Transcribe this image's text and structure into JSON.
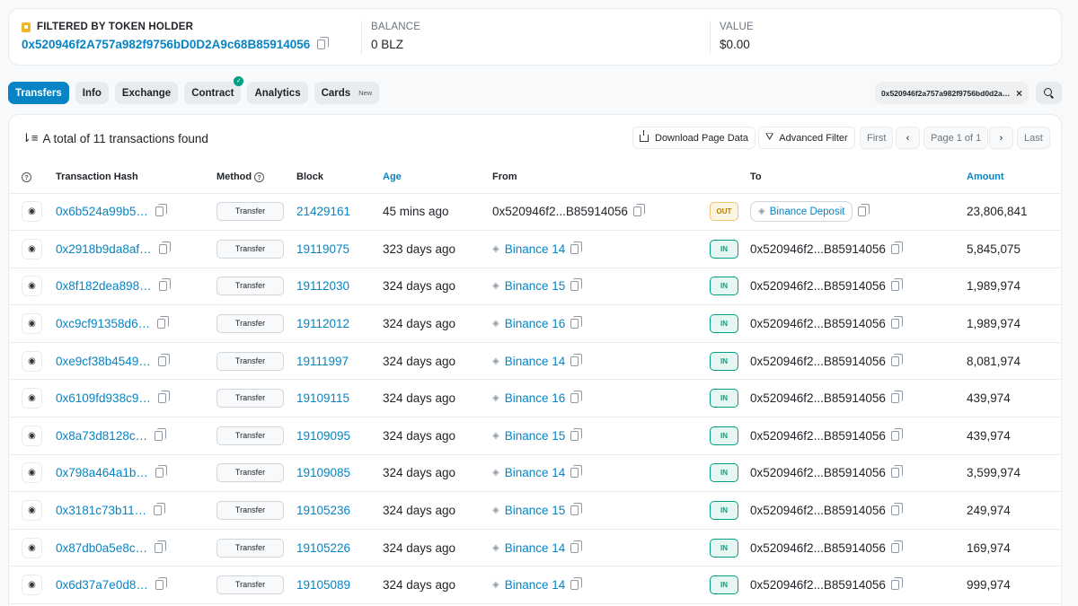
{
  "summary": {
    "filter_label": "FILTERED BY TOKEN HOLDER",
    "holder_address": "0x520946f2A757a982f9756bD0D2A9c68B85914056",
    "balance_label": "BALANCE",
    "balance_value": "0 BLZ",
    "value_label": "VALUE",
    "value_value": "$0.00"
  },
  "tabs": [
    {
      "label": "Transfers",
      "active": true
    },
    {
      "label": "Info"
    },
    {
      "label": "Exchange"
    },
    {
      "label": "Contract",
      "verified": "✓"
    },
    {
      "label": "Analytics"
    },
    {
      "label": "Cards",
      "badge": "New"
    }
  ],
  "filter_chip": {
    "address": "0x520946f2a757a982f9756bd0d2a9c68b85914056",
    "clear": "×"
  },
  "list": {
    "total_text": "A total of 11 transactions found",
    "download_label": "Download Page Data",
    "advanced_filter_label": "Advanced Filter",
    "pagination": {
      "first": "First",
      "prev": "‹",
      "page_text": "Page 1 of 1",
      "next": "›",
      "last": "Last"
    }
  },
  "table": {
    "headers": {
      "hash": "Transaction Hash",
      "method": "Method",
      "block": "Block",
      "age": "Age",
      "from": "From",
      "to": "To",
      "amount": "Amount"
    },
    "rows": [
      {
        "hash": "0x6b524a99b5…",
        "method": "Transfer",
        "block": "21429161",
        "age": "45 mins ago",
        "from": "0x520946f2...B85914056",
        "direction": "OUT",
        "to": "Binance Deposit",
        "amount": "23,806,841"
      },
      {
        "hash": "0x2918b9da8af…",
        "method": "Transfer",
        "block": "19119075",
        "age": "323 days ago",
        "from": "Binance 14",
        "direction": "IN",
        "to": "0x520946f2...B85914056",
        "amount": "5,845,075"
      },
      {
        "hash": "0x8f182dea898…",
        "method": "Transfer",
        "block": "19112030",
        "age": "324 days ago",
        "from": "Binance 15",
        "direction": "IN",
        "to": "0x520946f2...B85914056",
        "amount": "1,989,974"
      },
      {
        "hash": "0xc9cf91358d6…",
        "method": "Transfer",
        "block": "19112012",
        "age": "324 days ago",
        "from": "Binance 16",
        "direction": "IN",
        "to": "0x520946f2...B85914056",
        "amount": "1,989,974"
      },
      {
        "hash": "0xe9cf38b4549…",
        "method": "Transfer",
        "block": "19111997",
        "age": "324 days ago",
        "from": "Binance 14",
        "direction": "IN",
        "to": "0x520946f2...B85914056",
        "amount": "8,081,974"
      },
      {
        "hash": "0x6109fd938c9…",
        "method": "Transfer",
        "block": "19109115",
        "age": "324 days ago",
        "from": "Binance 16",
        "direction": "IN",
        "to": "0x520946f2...B85914056",
        "amount": "439,974"
      },
      {
        "hash": "0x8a73d8128c…",
        "method": "Transfer",
        "block": "19109095",
        "age": "324 days ago",
        "from": "Binance 15",
        "direction": "IN",
        "to": "0x520946f2...B85914056",
        "amount": "439,974"
      },
      {
        "hash": "0x798a464a1b…",
        "method": "Transfer",
        "block": "19109085",
        "age": "324 days ago",
        "from": "Binance 14",
        "direction": "IN",
        "to": "0x520946f2...B85914056",
        "amount": "3,599,974"
      },
      {
        "hash": "0x3181c73b11…",
        "method": "Transfer",
        "block": "19105236",
        "age": "324 days ago",
        "from": "Binance 15",
        "direction": "IN",
        "to": "0x520946f2...B85914056",
        "amount": "249,974"
      },
      {
        "hash": "0x87db0a5e8c…",
        "method": "Transfer",
        "block": "19105226",
        "age": "324 days ago",
        "from": "Binance 14",
        "direction": "IN",
        "to": "0x520946f2...B85914056",
        "amount": "169,974"
      },
      {
        "hash": "0x6d37a7e0d8…",
        "method": "Transfer",
        "block": "19105089",
        "age": "324 days ago",
        "from": "Binance 14",
        "direction": "IN",
        "to": "0x520946f2...B85914056",
        "amount": "999,974"
      }
    ]
  },
  "colors": {
    "accent": "#0784c3",
    "in": "#00a186",
    "out": "#b47d00"
  }
}
